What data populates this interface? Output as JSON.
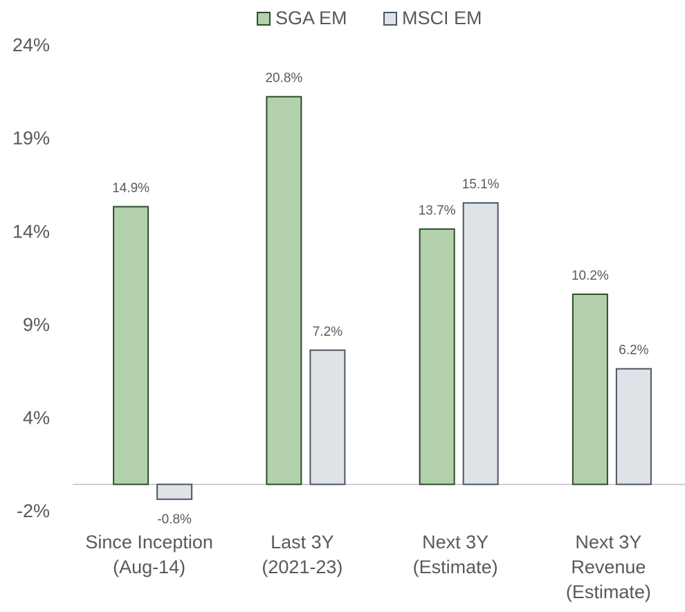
{
  "chart_data": {
    "type": "bar",
    "categories": [
      [
        "Since Inception",
        "(Aug-14)"
      ],
      [
        "Last 3Y",
        "(2021-23)"
      ],
      [
        "Next 3Y",
        "(Estimate)"
      ],
      [
        "Next 3Y",
        "Revenue",
        "(Estimate)"
      ]
    ],
    "series": [
      {
        "name": "SGA EM",
        "color": "#b3d1ad",
        "stroke": "#2f4a2b",
        "values": [
          14.9,
          20.8,
          13.7,
          10.2
        ],
        "value_labels": [
          "14.9%",
          "20.8%",
          "13.7%",
          "10.2%"
        ]
      },
      {
        "name": "MSCI EM",
        "color": "#dfe3e8",
        "stroke": "#4a5663",
        "values": [
          -0.8,
          7.2,
          15.1,
          6.2
        ],
        "value_labels": [
          "-0.8%",
          "7.2%",
          "15.1%",
          "6.2%"
        ]
      }
    ],
    "ylim": [
      -1.5,
      23.5
    ],
    "yticks": [
      {
        "value": -1.5,
        "label": "-2%"
      },
      {
        "value": 3.5,
        "label": "4%"
      },
      {
        "value": 8.5,
        "label": "9%"
      },
      {
        "value": 13.5,
        "label": "14%"
      },
      {
        "value": 18.5,
        "label": "19%"
      },
      {
        "value": 23.5,
        "label": "24%"
      }
    ],
    "legend": "top",
    "grid": false
  }
}
